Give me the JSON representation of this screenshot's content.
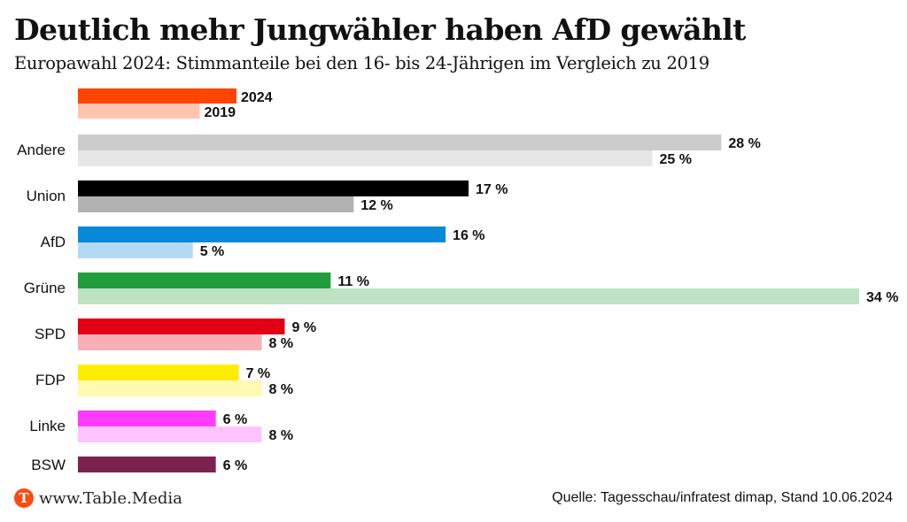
{
  "header": {
    "title": "Deutlich mehr Jungwähler haben AfD gewählt",
    "subtitle": "Europawahl 2024: Stimmanteile bei den 16- bis 24-Jährigen im Vergleich zu 2019"
  },
  "footer": {
    "logo_letter": "T",
    "site": "www.Table.Media",
    "source": "Quelle: Tagesschau/infratest dimap, Stand 10.06.2024"
  },
  "chart_data": {
    "type": "bar",
    "orientation": "horizontal",
    "title": "Deutlich mehr Jungwähler haben AfD gewählt",
    "subtitle": "Europawahl 2024: Stimmanteile bei den 16- bis 24-Jährigen im Vergleich zu 2019",
    "xlabel": "",
    "ylabel": "",
    "unit": "%",
    "xlim": [
      0,
      34
    ],
    "grid": false,
    "legend": {
      "placement": "top-left",
      "entries": [
        {
          "label": "2024",
          "color": "#ff4500"
        },
        {
          "label": "2019",
          "color": "#ffc4b0"
        }
      ]
    },
    "categories": [
      "Andere",
      "Union",
      "AfD",
      "Grüne",
      "SPD",
      "FDP",
      "Linke",
      "BSW"
    ],
    "series": [
      {
        "name": "2024",
        "values": [
          28,
          17,
          16,
          11,
          9,
          7,
          6,
          6
        ],
        "colors": [
          "#cccccc",
          "#000000",
          "#0788d9",
          "#1f9e3b",
          "#e10014",
          "#ffed00",
          "#ff3bff",
          "#7a2350"
        ]
      },
      {
        "name": "2019",
        "values": [
          25,
          12,
          5,
          34,
          8,
          8,
          8,
          null
        ],
        "colors": [
          "#e6e6e6",
          "#b2b2b2",
          "#b2daf3",
          "#bde3c4",
          "#f6b0b5",
          "#fff9b3",
          "#ffc4ff",
          null
        ]
      }
    ],
    "value_labels": {
      "2024": [
        "28 %",
        "17 %",
        "16 %",
        "11 %",
        "9 %",
        "7 %",
        "6 %",
        "6 %"
      ],
      "2019": [
        "25 %",
        "12 %",
        "5 %",
        "34 %",
        "8 %",
        "8 %",
        "8 %",
        null
      ]
    }
  }
}
